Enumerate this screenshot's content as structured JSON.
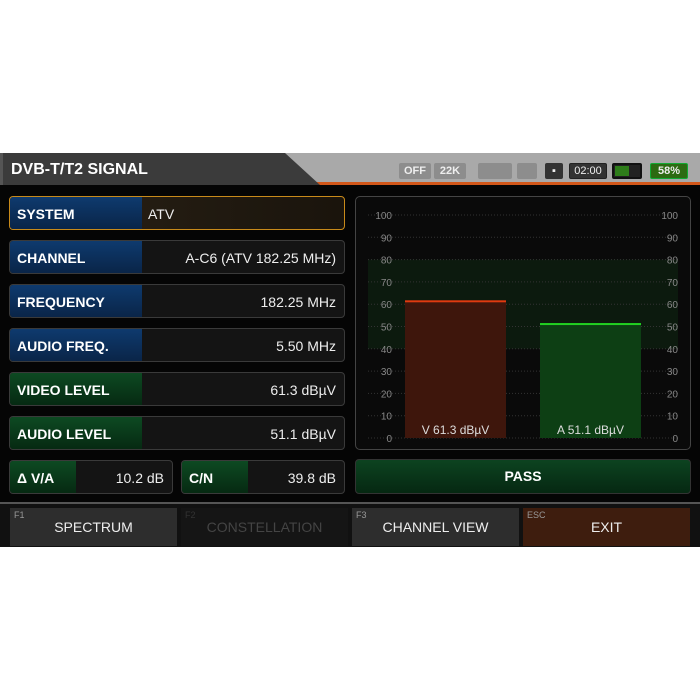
{
  "header": {
    "title": "DVB-T/T2 SIGNAL",
    "lnb_power": "OFF",
    "tone": "22K",
    "time": "02:00",
    "battery": "58%",
    "battery_level": 0.58
  },
  "rows": [
    {
      "label": "SYSTEM",
      "value": "ATV"
    },
    {
      "label": "CHANNEL",
      "value": "A-C6 (ATV 182.25 MHz)"
    },
    {
      "label": "FREQUENCY",
      "value": "182.25 MHz"
    },
    {
      "label": "AUDIO FREQ.",
      "value": "5.50 MHz"
    },
    {
      "label": "VIDEO LEVEL",
      "value": "61.3 dBµV"
    },
    {
      "label": "AUDIO LEVEL",
      "value": "51.1 dBµV"
    }
  ],
  "delta": {
    "label": "Δ V/A",
    "value": "10.2 dB"
  },
  "cn": {
    "label": "C/N",
    "value": "39.8 dB"
  },
  "chart_data": {
    "type": "bar",
    "ylim": [
      0,
      100
    ],
    "ticks": [
      "0",
      "10",
      "20",
      "30",
      "40",
      "50",
      "60",
      "70",
      "80",
      "90",
      "100"
    ],
    "pass_range": [
      40,
      80
    ],
    "series": [
      {
        "label": "V 61.3 dBµV",
        "value": 61.3,
        "color": "#e03a10"
      },
      {
        "label": "A 51.1 dBµV",
        "value": 51.1,
        "color": "#22d022"
      }
    ]
  },
  "status": "PASS",
  "fkeys": [
    {
      "key": "F1",
      "label": "SPECTRUM"
    },
    {
      "key": "F2",
      "label": "CONSTELLATION"
    },
    {
      "key": "F3",
      "label": "CHANNEL VIEW"
    },
    {
      "key": "ESC",
      "label": "EXIT"
    }
  ]
}
